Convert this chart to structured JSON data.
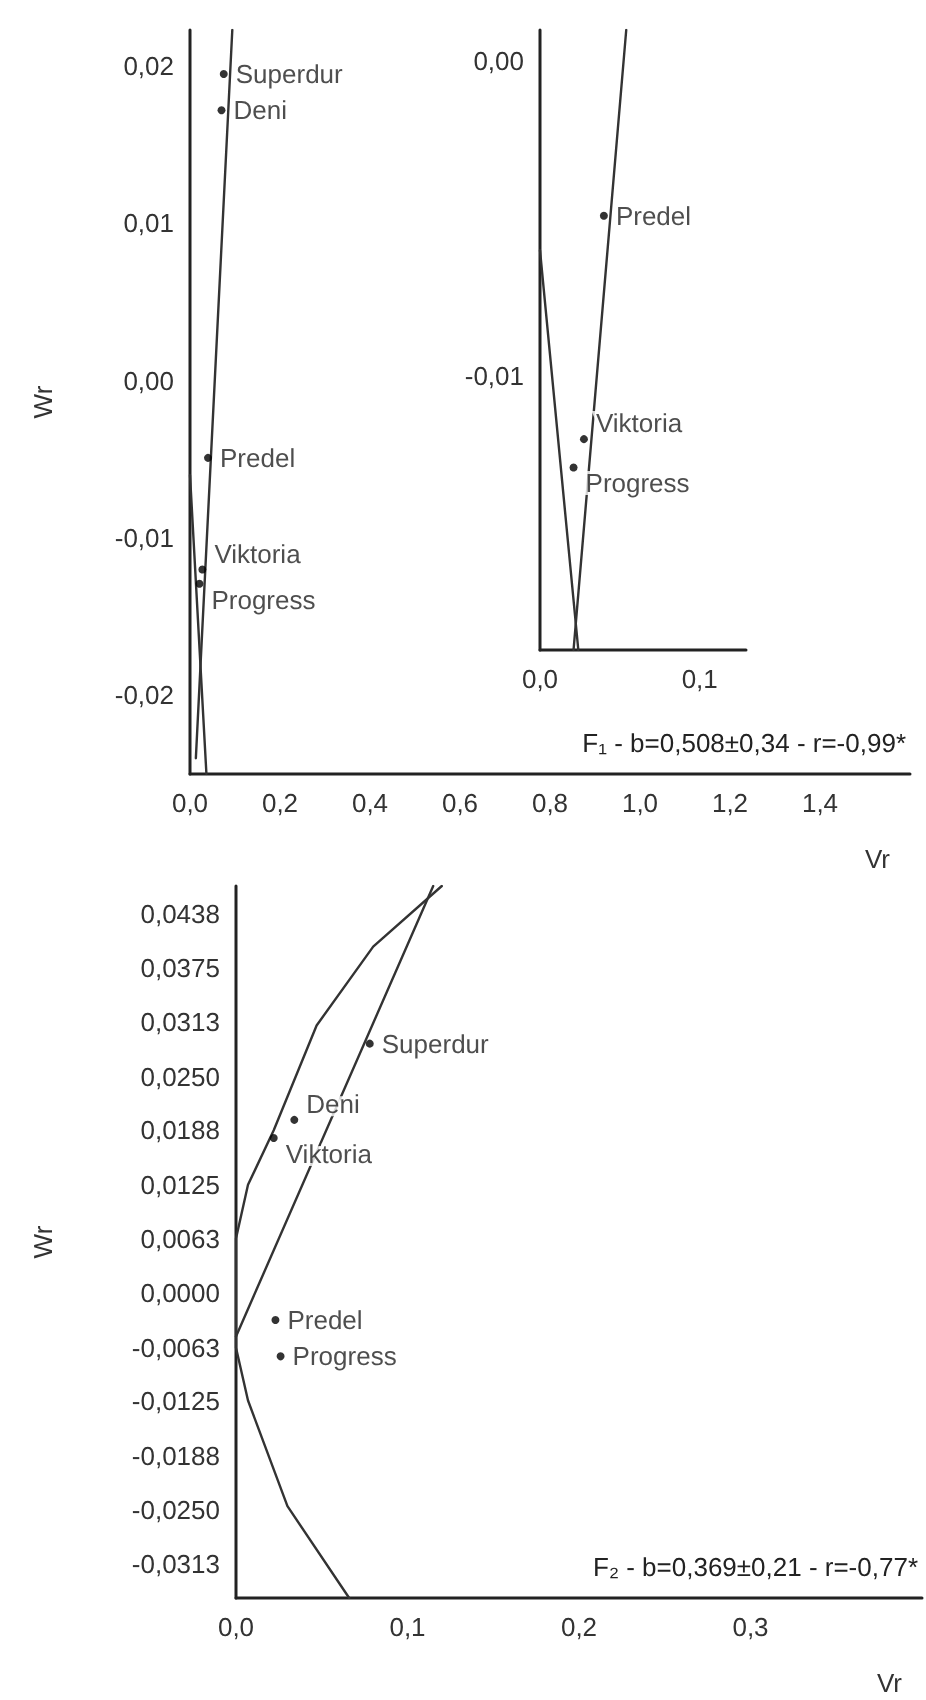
{
  "chart_data": [
    {
      "type": "scatter",
      "xlabel": "Vr",
      "ylabel": "Wr",
      "xlim": [
        0,
        1.6
      ],
      "ylim": [
        -0.025,
        0.0223
      ],
      "xticks": [
        {
          "value": 0,
          "label": "0,0"
        },
        {
          "value": 0.2,
          "label": "0,2"
        },
        {
          "value": 0.4,
          "label": "0,4"
        },
        {
          "value": 0.6,
          "label": "0,6"
        },
        {
          "value": 0.8,
          "label": "0,8"
        },
        {
          "value": 1.0,
          "label": "1,0"
        },
        {
          "value": 1.2,
          "label": "1,2"
        },
        {
          "value": 1.4,
          "label": "1,4"
        }
      ],
      "yticks": [
        {
          "value": -0.02,
          "label": "-0,02"
        },
        {
          "value": -0.01,
          "label": "-0,01"
        },
        {
          "value": 0,
          "label": "0,00"
        },
        {
          "value": 0.01,
          "label": "0,01"
        },
        {
          "value": 0.02,
          "label": "0,02"
        }
      ],
      "annotations": [
        "F₁ - b=0,508±0,34 - r=-0,99*"
      ],
      "marker": "circle",
      "series": [
        {
          "name": "Superdur",
          "color": "#000000",
          "x": [
            0.075
          ],
          "values": [
            0.0195
          ]
        },
        {
          "name": "Deni",
          "color": "#000000",
          "x": [
            0.07
          ],
          "values": [
            0.0172
          ]
        },
        {
          "name": "Predel",
          "color": "#000000",
          "x": [
            0.04
          ],
          "values": [
            -0.0049
          ]
        },
        {
          "name": "Viktoria",
          "color": "#000000",
          "x": [
            0.0275
          ],
          "values": [
            -0.012
          ]
        },
        {
          "name": "Progress",
          "color": "#000000",
          "x": [
            0.021
          ],
          "values": [
            -0.0129
          ]
        },
        {
          "type": "line",
          "marker": "none",
          "color": "#333333",
          "x": [
            0.094,
            0.013
          ],
          "values": [
            0.0223,
            -0.024
          ]
        },
        {
          "type": "line",
          "marker": "none",
          "color": "#333333",
          "x": [
            0,
            0.0365
          ],
          "values": [
            -0.006,
            -0.025
          ]
        }
      ]
    },
    {
      "type": "scatter",
      "xlim": [
        0,
        0.129
      ],
      "ylim": [
        -0.0187,
        0.001
      ],
      "xticks": [
        {
          "value": 0,
          "label": "0,0"
        },
        {
          "value": 0.1,
          "label": "0,1"
        }
      ],
      "yticks": [
        {
          "value": -0.01,
          "label": "-0,01"
        },
        {
          "value": 0,
          "label": "0,00"
        }
      ],
      "marker": "circle",
      "series": [
        {
          "name": "Predel",
          "color": "#000000",
          "x": [
            0.04
          ],
          "values": [
            -0.0049
          ]
        },
        {
          "name": "Viktoria",
          "color": "#000000",
          "x": [
            0.0275
          ],
          "values": [
            -0.012
          ]
        },
        {
          "name": "Progress",
          "color": "#000000",
          "x": [
            0.021
          ],
          "values": [
            -0.0129
          ]
        },
        {
          "type": "line",
          "marker": "none",
          "color": "#333333",
          "x": [
            0.054,
            0.021
          ],
          "values": [
            0.001,
            -0.0187
          ]
        },
        {
          "type": "line",
          "marker": "none",
          "color": "#333333",
          "x": [
            0,
            0.024
          ],
          "values": [
            -0.006,
            -0.0187
          ]
        }
      ]
    },
    {
      "type": "scatter",
      "xlabel": "Vr",
      "ylabel": "Wr",
      "xlim": [
        0,
        0.4
      ],
      "ylim": [
        -0.0352,
        0.047
      ],
      "xticks": [
        {
          "value": 0,
          "label": "0,0"
        },
        {
          "value": 0.1,
          "label": "0,1"
        },
        {
          "value": 0.2,
          "label": "0,2"
        },
        {
          "value": 0.3,
          "label": "0,3"
        }
      ],
      "yticks": [
        {
          "value": -0.0313,
          "label": "-0,0313"
        },
        {
          "value": -0.025,
          "label": "-0,0250"
        },
        {
          "value": -0.0188,
          "label": "-0,0188"
        },
        {
          "value": -0.0125,
          "label": "-0,0125"
        },
        {
          "value": -0.0063,
          "label": "-0,0063"
        },
        {
          "value": 0,
          "label": "0,0000"
        },
        {
          "value": 0.0063,
          "label": "0,0063"
        },
        {
          "value": 0.0125,
          "label": "0,0125"
        },
        {
          "value": 0.0188,
          "label": "0,0188"
        },
        {
          "value": 0.025,
          "label": "0,0250"
        },
        {
          "value": 0.0313,
          "label": "0,0313"
        },
        {
          "value": 0.0375,
          "label": "0,0375"
        },
        {
          "value": 0.0438,
          "label": "0,0438"
        }
      ],
      "annotations": [
        "F₂ - b=0,369±0,21 - r=-0,77*"
      ],
      "marker": "circle",
      "series": [
        {
          "name": "Superdur",
          "color": "#000000",
          "x": [
            0.078
          ],
          "values": [
            0.0288
          ]
        },
        {
          "name": "Deni",
          "color": "#000000",
          "x": [
            0.034
          ],
          "values": [
            0.02
          ]
        },
        {
          "name": "Viktoria",
          "color": "#000000",
          "x": [
            0.022
          ],
          "values": [
            0.0179
          ]
        },
        {
          "name": "Predel",
          "color": "#000000",
          "x": [
            0.023
          ],
          "values": [
            -0.0031
          ]
        },
        {
          "name": "Progress",
          "color": "#000000",
          "x": [
            0.026
          ],
          "values": [
            -0.0073
          ]
        },
        {
          "type": "line",
          "marker": "none",
          "color": "#333333",
          "x": [
            0,
            0.115
          ],
          "values": [
            -0.005,
            0.047
          ]
        },
        {
          "type": "line",
          "marker": "none",
          "color": "#333333",
          "x": [
            0.066,
            0.03,
            0.007,
            0,
            0,
            0.007,
            0.022,
            0.047,
            0.08,
            0.12
          ],
          "values": [
            -0.0352,
            -0.0246,
            -0.0124,
            -0.0063,
            0.0063,
            0.0125,
            0.0188,
            0.0309,
            0.04,
            0.047
          ]
        }
      ]
    }
  ]
}
